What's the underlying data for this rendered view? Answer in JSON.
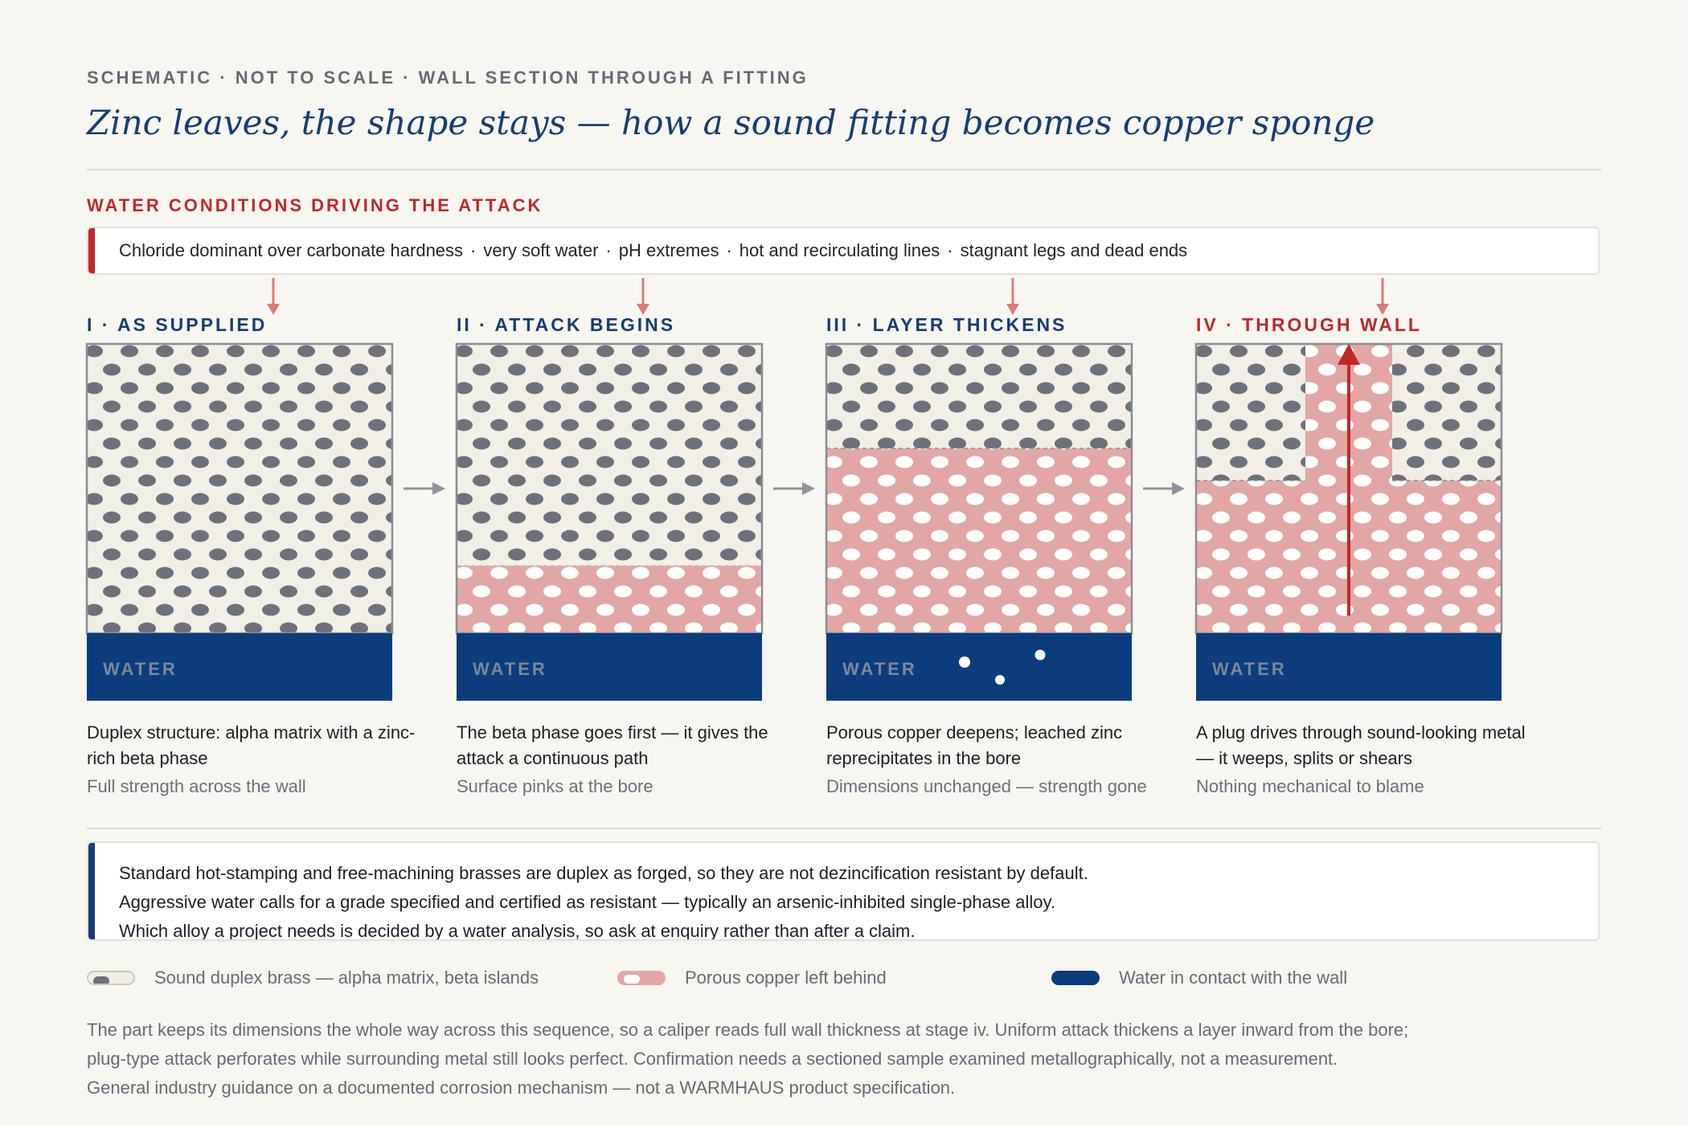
{
  "header": {
    "kicker": "SCHEMATIC · NOT TO SCALE · WALL SECTION THROUGH A FITTING",
    "title": "Zinc leaves, the shape stays — how a sound fitting becomes copper sponge"
  },
  "conditions": {
    "heading": "WATER CONDITIONS DRIVING THE ATTACK",
    "items": [
      "Chloride dominant over carbonate hardness",
      "very soft water",
      "pH extremes",
      "hot and recirculating lines",
      "stagnant legs and dead ends"
    ]
  },
  "stages": [
    {
      "label": "I · AS SUPPLIED",
      "water_label": "WATER",
      "caption_main": "Duplex structure: alpha matrix with a zinc-rich beta phase",
      "caption_sub": "Full strength across the wall",
      "porous_depth_fraction": 0
    },
    {
      "label": "II · ATTACK BEGINS",
      "water_label": "WATER",
      "caption_main": "The beta phase goes first — it gives the attack a continuous path",
      "caption_sub": "Surface pinks at the bore",
      "porous_depth_fraction": 0.23
    },
    {
      "label": "III · LAYER THICKENS",
      "water_label": "WATER",
      "caption_main": "Porous copper deepens; leached zinc reprecipitates in the bore",
      "caption_sub": "Dimensions unchanged — strength gone",
      "porous_depth_fraction": 0.63
    },
    {
      "label": "IV · THROUGH WALL",
      "water_label": "WATER",
      "caption_main": "A plug drives through sound-looking metal — it weeps, splits or shears",
      "caption_sub": "Nothing mechanical to blame",
      "porous_depth_fraction": 0.52,
      "plug_through_wall": true
    }
  ],
  "note": {
    "lines": [
      "Standard hot-stamping and free-machining brasses are duplex as forged, so they are not dezincification resistant by default.",
      "Aggressive water calls for a grade specified and certified as resistant — typically an arsenic-inhibited single-phase alloy.",
      "Which alloy a project needs is decided by a water analysis, so ask at enquiry rather than after a claim."
    ]
  },
  "legend": [
    {
      "label": "Sound duplex brass — alpha matrix, beta islands",
      "swatch": "sound-brass"
    },
    {
      "label": "Porous copper left behind",
      "swatch": "porous-copper"
    },
    {
      "label": "Water in contact with the wall",
      "swatch": "water"
    }
  ],
  "footer": {
    "lines": [
      "The part keeps its dimensions the whole way across this sequence, so a caliper reads full wall thickness at stage iv. Uniform attack thickens a layer inward from the bore;",
      "plug-type attack perforates while surrounding metal still looks perfect. Confirmation needs a sectioned sample examined metallographically, not a measurement.",
      "General industry guidance on a documented corrosion mechanism — not a WARMHAUS product specification."
    ]
  },
  "colors": {
    "navy": "#173e73",
    "water": "#0b3d7c",
    "red": "#c0282a",
    "brass": "#f1efe6",
    "beta": "#6d717c",
    "copper": "#e2a7a5"
  }
}
